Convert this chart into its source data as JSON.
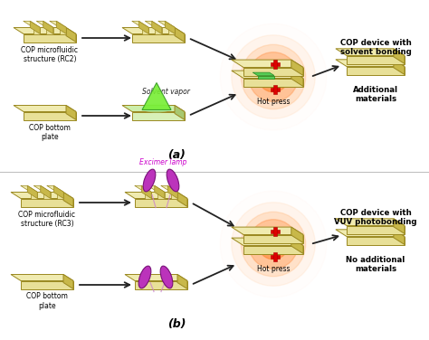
{
  "bg_color": "#ffffff",
  "cop_face_top": "#f0ebb0",
  "cop_face_front": "#e8e098",
  "cop_side_right": "#c8b84a",
  "cop_edge": "#9a8820",
  "arrow_color": "#222222",
  "red_glow": "#ff5500",
  "green_tri_face": "#88ee44",
  "green_tri_edge": "#228822",
  "purple_lamp": "#bb33bb",
  "purple_lamp_edge": "#771177",
  "label_a": "(a)",
  "label_b": "(b)",
  "text_micro_rc2": "COP microfluidic\nstructure (RC2)",
  "text_micro_rc3": "COP microfluidic\nstructure (RC3)",
  "text_bottom_plate": "COP bottom\nplate",
  "text_solvent": "Solvent vapor",
  "text_hot_press": "Hot press",
  "text_cop_device_a": "COP device with\nsolvent bonding",
  "text_additional": "Additional\nmaterials",
  "text_excimer": "Excimer lamp",
  "text_cop_device_b": "COP device with\nVUV photobonding",
  "text_no_additional": "No additional\nmaterials"
}
